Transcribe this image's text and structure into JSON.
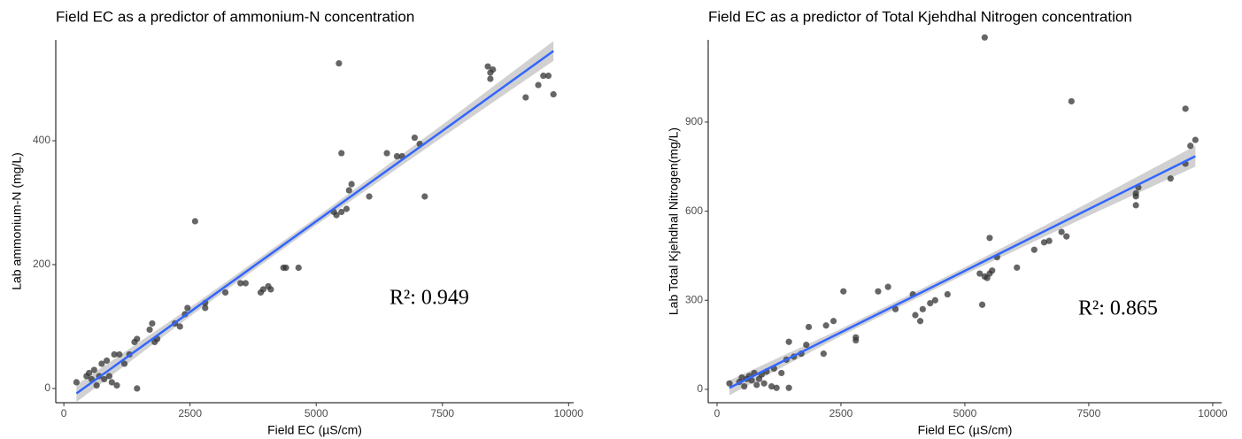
{
  "chart_data": [
    {
      "type": "scatter",
      "title": "Field EC as a predictor of ammonium-N concentration",
      "x_label": "Field EC (µS/cm)",
      "y_label": "Lab ammonium-N (mg/L)",
      "annotation": "R²: 0.949",
      "xlim": [
        -160,
        10100
      ],
      "ylim": [
        -23,
        563
      ],
      "xticks": [
        0,
        2500,
        5000,
        7500,
        10000
      ],
      "yticks": [
        0,
        200,
        400
      ],
      "point_color": "#333333",
      "line_color": "#3366ff",
      "band_color": "#bdbdbd",
      "x": [
        250,
        450,
        500,
        550,
        600,
        650,
        700,
        750,
        800,
        850,
        900,
        950,
        1000,
        1050,
        1100,
        1200,
        1300,
        1400,
        1450,
        1450,
        1700,
        1750,
        1800,
        1850,
        2200,
        2300,
        2400,
        2450,
        2600,
        2800,
        2800,
        3200,
        3500,
        3600,
        3900,
        3950,
        4050,
        4100,
        4350,
        4400,
        4650,
        5350,
        5400,
        5450,
        5500,
        5500,
        5600,
        5650,
        5700,
        6050,
        6400,
        6600,
        6700,
        6950,
        7050,
        7150,
        8400,
        8450,
        8450,
        8500,
        9150,
        9400,
        9500,
        9600,
        9700
      ],
      "y": [
        10,
        20,
        25,
        15,
        30,
        5,
        20,
        40,
        15,
        45,
        20,
        10,
        55,
        5,
        55,
        40,
        55,
        75,
        80,
        0,
        95,
        105,
        75,
        80,
        105,
        100,
        120,
        130,
        270,
        130,
        138,
        155,
        170,
        170,
        155,
        160,
        165,
        160,
        195,
        195,
        195,
        285,
        280,
        525,
        285,
        380,
        290,
        320,
        330,
        310,
        380,
        375,
        375,
        405,
        395,
        310,
        520,
        510,
        500,
        515,
        470,
        490,
        505,
        505,
        475
      ],
      "fit": {
        "x": [
          250,
          2500,
          5000,
          7500,
          9700
        ],
        "y": [
          -8,
          123.6,
          270,
          416,
          545
        ],
        "lower": [
          -22,
          116.6,
          264,
          406,
          529
        ],
        "upper": [
          6,
          130.6,
          276,
          426,
          561
        ]
      }
    },
    {
      "type": "scatter",
      "title": "Field EC as a predictor of Total Kjehdhal Nitrogen concentration",
      "x_label": "Field EC (µS/cm)",
      "y_label": "Lab Total Kjehdhal Nitrogen(mg/L)",
      "annotation": "R²: 0.865",
      "xlim": [
        -178,
        10180
      ],
      "ylim": [
        -45,
        1177
      ],
      "xticks": [
        0,
        2500,
        5000,
        7500,
        10000
      ],
      "yticks": [
        0,
        300,
        600,
        900
      ],
      "point_color": "#333333",
      "line_color": "#3366ff",
      "band_color": "#bdbdbd",
      "x": [
        250,
        450,
        500,
        550,
        600,
        650,
        700,
        750,
        800,
        850,
        900,
        950,
        1000,
        1100,
        1150,
        1200,
        1300,
        1400,
        1450,
        1450,
        1550,
        1700,
        1800,
        1850,
        2150,
        2200,
        2350,
        2550,
        2800,
        2800,
        3250,
        3450,
        3600,
        3950,
        4000,
        4100,
        4150,
        4300,
        4400,
        4650,
        5300,
        5350,
        5400,
        5400,
        5450,
        5500,
        5500,
        5550,
        5650,
        6050,
        6400,
        6600,
        6700,
        6950,
        7050,
        7150,
        8450,
        8450,
        8450,
        8500,
        9150,
        9450,
        9450,
        9550,
        9650
      ],
      "y": [
        20,
        25,
        40,
        10,
        35,
        45,
        30,
        55,
        15,
        35,
        50,
        20,
        60,
        10,
        70,
        5,
        55,
        100,
        160,
        5,
        110,
        120,
        150,
        210,
        120,
        215,
        230,
        330,
        165,
        175,
        330,
        345,
        270,
        320,
        250,
        230,
        270,
        290,
        300,
        320,
        390,
        285,
        380,
        1185,
        375,
        510,
        390,
        400,
        445,
        410,
        470,
        495,
        500,
        530,
        515,
        970,
        620,
        650,
        660,
        680,
        710,
        760,
        945,
        820,
        840
      ],
      "fit": {
        "x": [
          250,
          2500,
          5000,
          7500,
          9650
        ],
        "y": [
          5,
          192,
          399,
          607,
          785
        ],
        "lower": [
          -20,
          180,
          387,
          585,
          750
        ],
        "upper": [
          30,
          204,
          411,
          629,
          820
        ]
      }
    }
  ]
}
